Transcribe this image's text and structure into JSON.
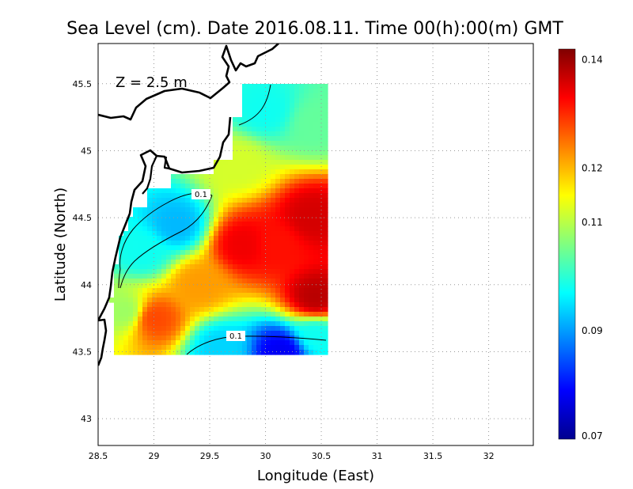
{
  "title": "Sea Level (cm). Date 2016.08.11. Time 00(h):00(m) GMT",
  "depth_label": "Z = 2.5 m",
  "x_axis": {
    "label": "Longitude (East)",
    "range": [
      28.5,
      32.4
    ],
    "ticks": [
      28.5,
      29,
      29.5,
      30,
      30.5,
      31,
      31.5,
      32
    ],
    "tick_labels": [
      "28.5",
      "29",
      "29.5",
      "30",
      "30.5",
      "31",
      "31.5",
      "32"
    ]
  },
  "y_axis": {
    "label": "Latitude (North)",
    "range": [
      42.8,
      45.8
    ],
    "ticks": [
      43,
      43.5,
      44,
      44.5,
      45,
      45.5
    ],
    "tick_labels": [
      "43",
      "43.5",
      "44",
      "44.5",
      "45",
      "45.5"
    ]
  },
  "grid": "dotted",
  "colorbar": {
    "min": 0.07,
    "max": 0.142,
    "tick_values": [
      0.07,
      0.09,
      0.11,
      0.12,
      0.14
    ],
    "tick_labels": [
      "0.07",
      "0.09",
      "0.11",
      "0.12",
      "0.14"
    ],
    "stops": [
      "#00008f",
      "#0000ff",
      "#0080ff",
      "#00ffff",
      "#80ff80",
      "#ffff00",
      "#ff8000",
      "#ff0000",
      "#800000"
    ]
  },
  "contours": [
    {
      "level": 0.1,
      "label": "0.1",
      "label_at": [
        29.35,
        44.7
      ]
    },
    {
      "level": 0.1,
      "label": "0.1",
      "label_at": [
        29.75,
        43.62
      ]
    }
  ],
  "chart_data": {
    "type": "heatmap",
    "variable": "Sea Level (cm)",
    "date": "2016.08.11",
    "time": "00(h):00(m) GMT",
    "depth": "Z = 2.5 m",
    "domain": {
      "lon": [
        28.6,
        30.55
      ],
      "lat": [
        43.48,
        45.5
      ]
    },
    "value_range": [
      0.07,
      0.142
    ],
    "features": [
      {
        "lon": 30.42,
        "lat": 44.5,
        "value": 0.136
      },
      {
        "lon": 30.45,
        "lat": 43.9,
        "value": 0.138
      },
      {
        "lon": 29.8,
        "lat": 44.3,
        "value": 0.134
      },
      {
        "lon": 30.1,
        "lat": 44.3,
        "value": 0.132
      },
      {
        "lon": 29.0,
        "lat": 43.75,
        "value": 0.128
      },
      {
        "lon": 29.4,
        "lat": 44.0,
        "value": 0.122
      },
      {
        "lon": 29.2,
        "lat": 44.45,
        "value": 0.092
      },
      {
        "lon": 28.9,
        "lat": 44.25,
        "value": 0.098
      },
      {
        "lon": 30.0,
        "lat": 45.3,
        "value": 0.098
      },
      {
        "lon": 30.15,
        "lat": 43.5,
        "value": 0.078
      },
      {
        "lon": 29.6,
        "lat": 43.52,
        "value": 0.094
      },
      {
        "lon": 28.75,
        "lat": 43.8,
        "value": 0.108
      },
      {
        "lon": 29.75,
        "lat": 44.9,
        "value": 0.112
      },
      {
        "lon": 30.45,
        "lat": 45.2,
        "value": 0.104
      },
      {
        "lon": 30.45,
        "lat": 43.62,
        "value": 0.098
      }
    ],
    "background_value": 0.108
  }
}
